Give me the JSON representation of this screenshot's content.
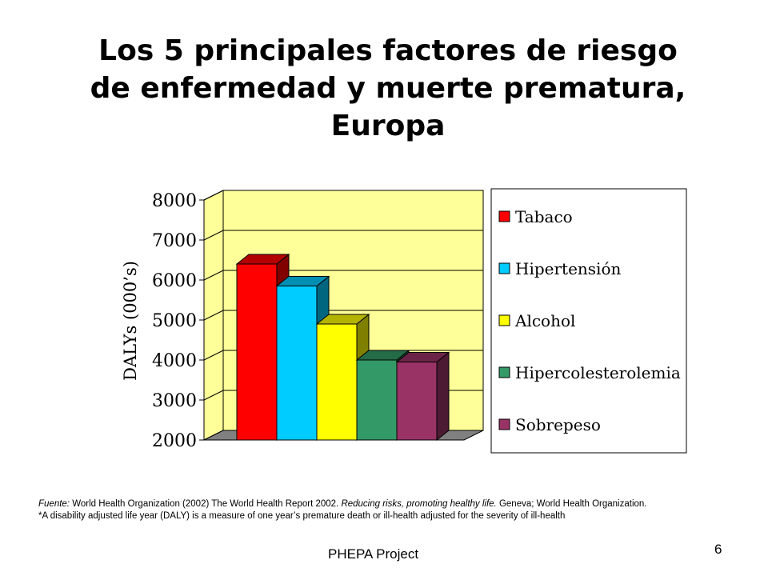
{
  "slide": {
    "title_lines": [
      "Los 5 principales factores de riesgo",
      "de enfermedad y muerte prematura,",
      "Europa"
    ],
    "source": {
      "label": "Fuente:",
      "text1": " World Health Organization (2002) The World Health Report 2002. ",
      "italic": "Reducing risks, promoting healthy life.",
      "text2": " Geneva; World Health Organization.",
      "note": "*A disability adjusted life year (DALY) is a measure of one year’s premature death or ill-health adjusted for the severity of ill-health"
    },
    "footer": "PHEPA Project",
    "page_number": "6"
  },
  "chart_data": {
    "type": "bar",
    "title": "",
    "xlabel": "",
    "ylabel": "DALYs (000’s)",
    "ylim": [
      2000,
      8000
    ],
    "yticks": [
      "2000",
      "3000",
      "4000",
      "5000",
      "6000",
      "7000",
      "8000"
    ],
    "grid": true,
    "legend_position": "right",
    "categories": [
      "Tabaco",
      "Hipertensión",
      "Alcohol",
      "Hipercolesterolemia",
      "Sobrepeso"
    ],
    "values": [
      6400,
      5850,
      4900,
      4000,
      3950
    ],
    "colors": [
      "#ff0000",
      "#00ccff",
      "#ffff00",
      "#339966",
      "#993366"
    ],
    "side_colors": [
      "#800000",
      "#006680",
      "#808000",
      "#1a4d33",
      "#4d1a33"
    ],
    "top_colors": [
      "#b30000",
      "#008fb3",
      "#b3b300",
      "#246b47",
      "#6b2447"
    ],
    "plot_bg": "#ffff99",
    "floor_color": "#808080"
  }
}
